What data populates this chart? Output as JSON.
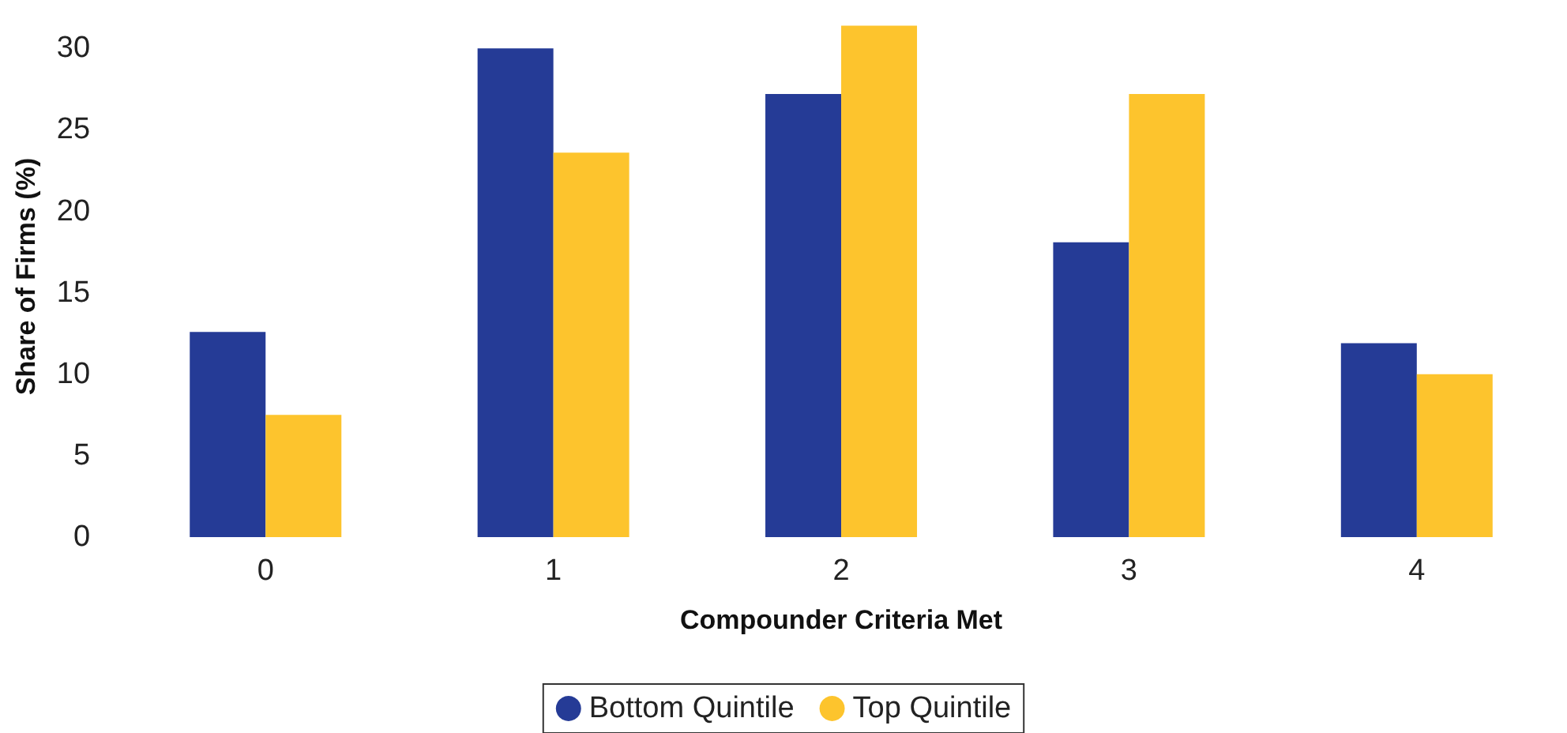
{
  "chart_data": {
    "type": "bar",
    "xlabel": "Compounder Criteria Met",
    "ylabel": "Share of Firms (%)",
    "categories": [
      "0",
      "1",
      "2",
      "3",
      "4"
    ],
    "series": [
      {
        "name": "Bottom Quintile",
        "color": "#253b96",
        "values": [
          12.6,
          30.0,
          27.2,
          18.1,
          11.9
        ]
      },
      {
        "name": "Top Quintile",
        "color": "#fdc42d",
        "values": [
          7.5,
          23.6,
          31.4,
          27.2,
          10.0
        ]
      }
    ],
    "ylim": [
      0,
      32
    ],
    "yticks": [
      0,
      5,
      10,
      15,
      20,
      25,
      30
    ],
    "grid": false,
    "legend": "bottom"
  }
}
